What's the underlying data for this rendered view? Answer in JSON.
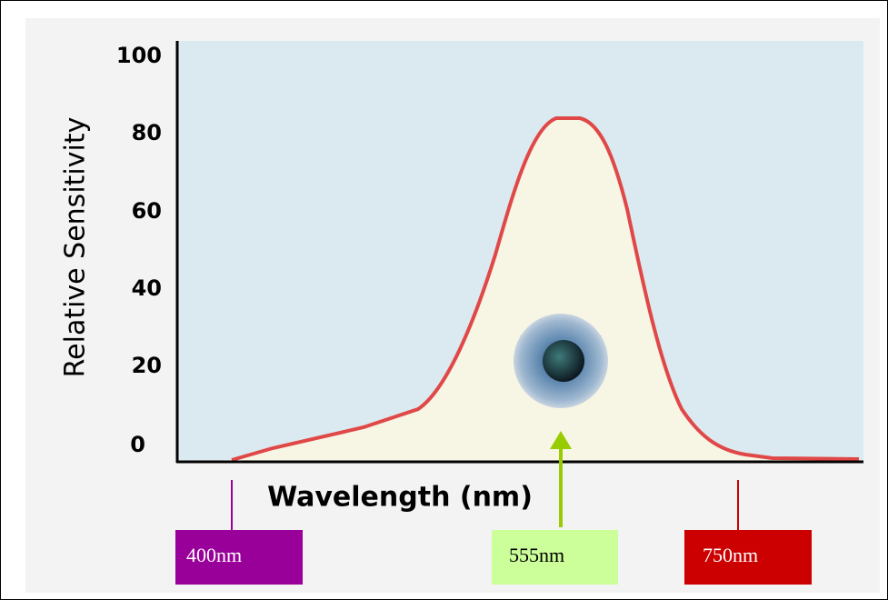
{
  "axis": {
    "y_label": "Relative Sensitivity",
    "x_label": "Wavelength (nm)",
    "y_ticks": [
      100,
      80,
      60,
      40,
      20,
      0
    ]
  },
  "markers": [
    {
      "label": "400nm"
    },
    {
      "label": "555nm"
    },
    {
      "label": "750nm"
    }
  ]
}
